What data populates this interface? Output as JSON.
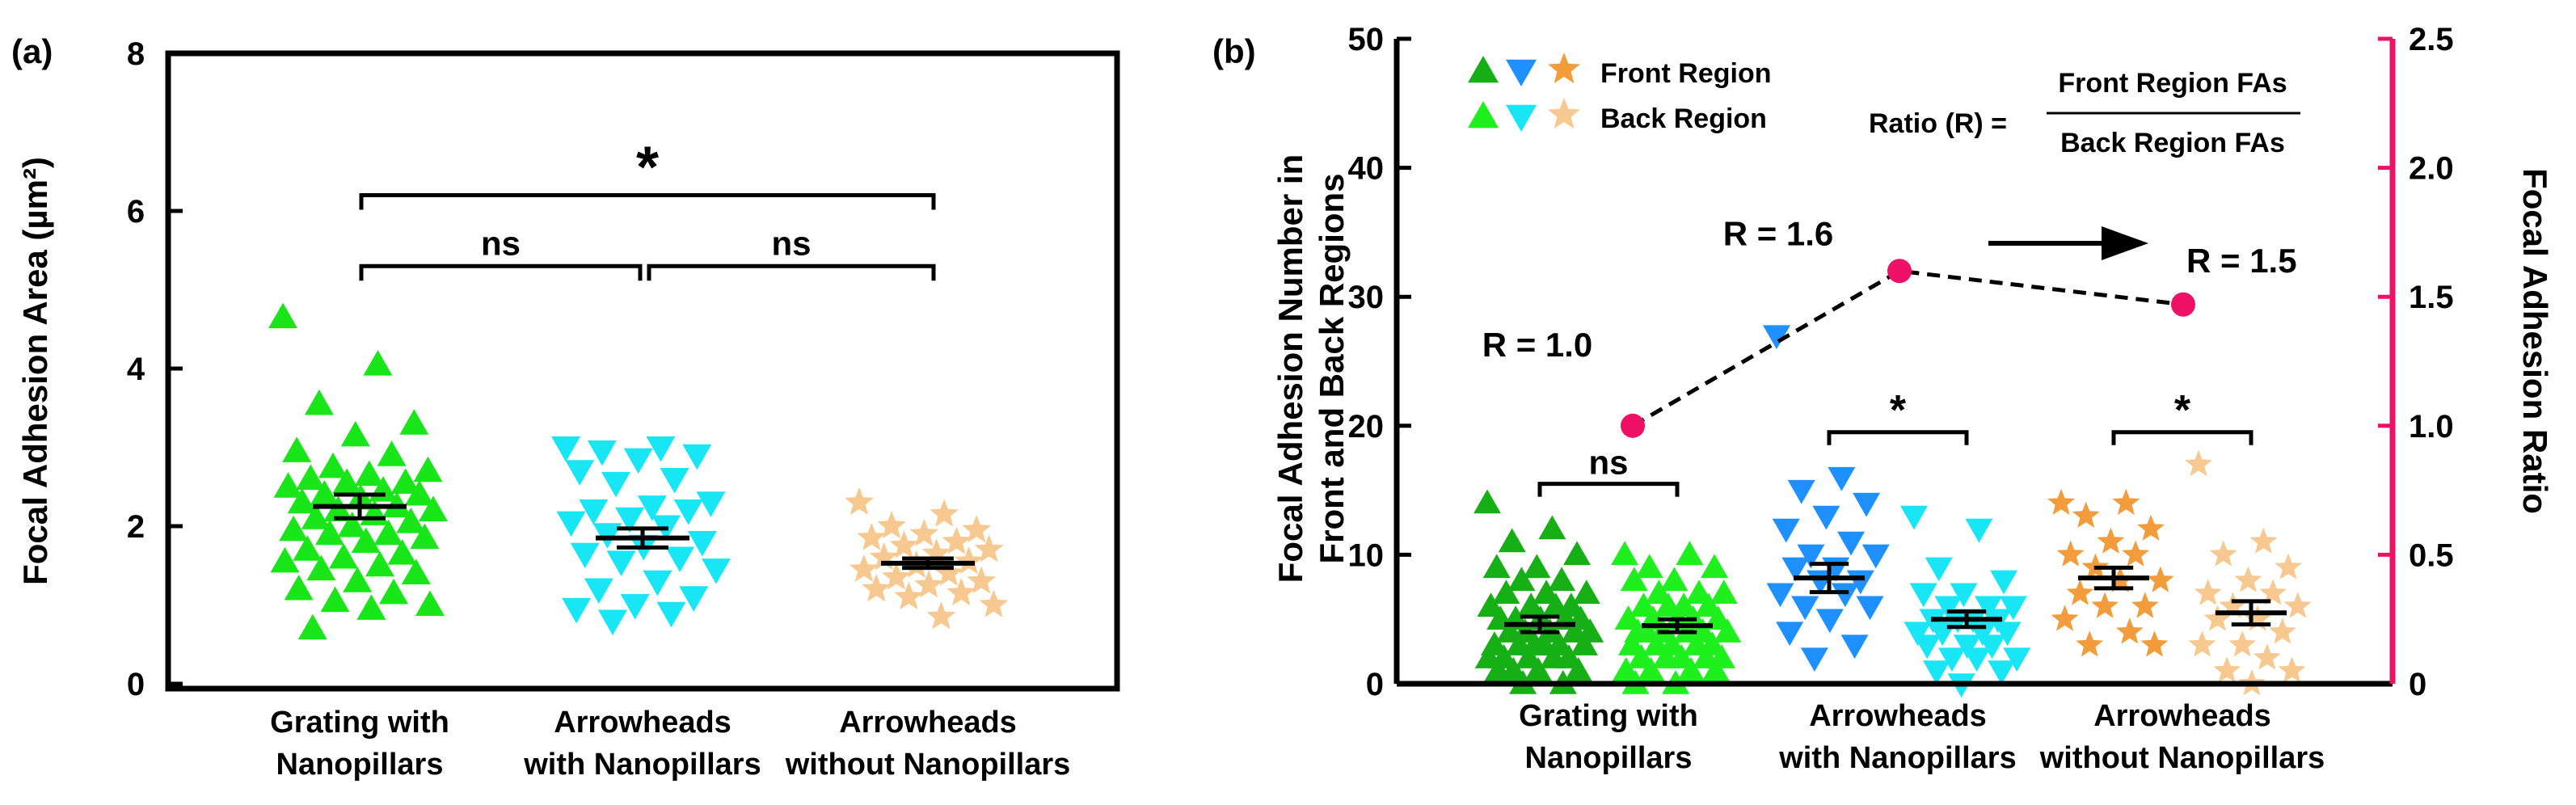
{
  "chart_data": [
    {
      "panel_label": "(a)",
      "type": "scatter",
      "ylabel": "Focal Adhesion Area (µm²)",
      "ylim": [
        0,
        8
      ],
      "yticks": [
        "0",
        "2",
        "4",
        "6",
        "8"
      ],
      "categories": [
        "Grating with Nanopillars",
        "Arrowheads with Nanopillars",
        "Arrowheads without Nanopillars"
      ],
      "category_lines": [
        [
          "Grating with",
          "Nanopillars"
        ],
        [
          "Arrowheads",
          "with Nanopillars"
        ],
        [
          "Arrowheads",
          "without Nanopillars"
        ]
      ],
      "series": [
        {
          "name": "Grating with Nanopillars",
          "marker": "triangle-up",
          "color": "#19e619",
          "mean": 2.25,
          "sem": 0.15,
          "values": [
            4.65,
            4.05,
            3.55,
            3.3,
            3.15,
            2.95,
            2.9,
            2.75,
            2.7,
            2.65,
            2.6,
            2.55,
            2.55,
            2.5,
            2.45,
            2.4,
            2.4,
            2.35,
            2.3,
            2.25,
            2.2,
            2.2,
            2.15,
            2.1,
            2.05,
            2.0,
            1.95,
            1.9,
            1.9,
            1.85,
            1.8,
            1.7,
            1.65,
            1.6,
            1.55,
            1.5,
            1.45,
            1.4,
            1.3,
            1.2,
            1.15,
            1.05,
            1.0,
            0.95,
            0.7
          ]
        },
        {
          "name": "Arrowheads with Nanopillars",
          "marker": "triangle-down",
          "color": "#19e6f5",
          "mean": 1.85,
          "sem": 0.12,
          "values": [
            3.0,
            3.0,
            2.95,
            2.9,
            2.85,
            2.7,
            2.6,
            2.55,
            2.3,
            2.25,
            2.2,
            2.2,
            2.1,
            2.05,
            2.0,
            1.9,
            1.8,
            1.75,
            1.65,
            1.6,
            1.55,
            1.45,
            1.3,
            1.2,
            1.1,
            1.0,
            0.95,
            0.9,
            0.8
          ]
        },
        {
          "name": "Arrowheads without Nanopillars",
          "marker": "star",
          "color": "#f7c990",
          "mean": 1.53,
          "sem": 0.06,
          "values": [
            2.3,
            2.15,
            2.0,
            1.95,
            1.9,
            1.85,
            1.8,
            1.75,
            1.7,
            1.65,
            1.6,
            1.55,
            1.5,
            1.45,
            1.4,
            1.35,
            1.3,
            1.25,
            1.2,
            1.15,
            1.1,
            1.0,
            0.85
          ]
        }
      ],
      "significance": [
        {
          "from": 0,
          "to": 1,
          "label": "ns"
        },
        {
          "from": 1,
          "to": 2,
          "label": "ns"
        },
        {
          "from": 0,
          "to": 2,
          "label": "*"
        }
      ]
    },
    {
      "panel_label": "(b)",
      "type": "scatter",
      "ylabel_lines": [
        "Focal Adhesion Number in",
        "Front and Back Regions"
      ],
      "ylim": [
        0,
        50
      ],
      "yticks": [
        "0",
        "10",
        "20",
        "30",
        "40",
        "50"
      ],
      "y2label": "Focal Adhesion Ratio",
      "y2lim": [
        0,
        2.5
      ],
      "y2ticks": [
        "0",
        "0.5",
        "1.0",
        "1.5",
        "2.0",
        "2.5"
      ],
      "y2color": "#ee1166",
      "categories": [
        "Grating with Nanopillars",
        "Arrowheads with Nanopillars",
        "Arrowheads without Nanopillars"
      ],
      "category_lines": [
        [
          "Grating with",
          "Nanopillars"
        ],
        [
          "Arrowheads",
          "with Nanopillars"
        ],
        [
          "Arrowheads",
          "without Nanopillars"
        ]
      ],
      "legend": {
        "front": "Front Region",
        "back": "Back Region",
        "ratio_prefix": "Ratio (R) =",
        "ratio_numerator": "Front Region FAs",
        "ratio_denominator": "Back Region FAs"
      },
      "series": [
        {
          "name": "Grating with Nanopillars - Front Region",
          "group": 0,
          "marker": "triangle-up",
          "color": "#16b016",
          "mean": 4.6,
          "sem": 0.6,
          "values": [
            14,
            12,
            11,
            10,
            9,
            9,
            8,
            8,
            7,
            7,
            7,
            6,
            6,
            6,
            6,
            5,
            5,
            5,
            5,
            5,
            4,
            4,
            4,
            4,
            4,
            3,
            3,
            3,
            3,
            3,
            3,
            2,
            2,
            2,
            2,
            2,
            1,
            1,
            1,
            1,
            0,
            0
          ]
        },
        {
          "name": "Grating with Nanopillars - Back Region",
          "group": 0,
          "marker": "triangle-up",
          "color": "#1ef01e",
          "mean": 4.5,
          "sem": 0.5,
          "values": [
            10,
            10,
            9,
            9,
            8,
            8,
            7,
            7,
            7,
            6,
            6,
            6,
            6,
            5,
            5,
            5,
            5,
            5,
            4,
            4,
            4,
            4,
            4,
            4,
            3,
            3,
            3,
            3,
            3,
            2,
            2,
            2,
            2,
            2,
            1,
            1,
            1,
            1,
            0,
            0
          ]
        },
        {
          "name": "Arrowheads with Nanopillars - Front Region",
          "group": 1,
          "marker": "triangle-down",
          "color": "#1e90ff",
          "mean": 8.2,
          "sem": 1.1,
          "values": [
            27,
            16,
            15,
            14,
            13,
            12,
            11,
            10,
            10,
            9,
            9,
            8,
            8,
            7,
            7,
            6,
            6,
            5,
            4,
            3,
            2
          ]
        },
        {
          "name": "Arrowheads with Nanopillars - Back Region",
          "group": 1,
          "marker": "triangle-down",
          "color": "#19e6f5",
          "mean": 5.0,
          "sem": 0.6,
          "values": [
            13,
            12,
            9,
            8,
            7,
            7,
            6,
            6,
            6,
            5,
            5,
            5,
            5,
            4,
            4,
            4,
            4,
            3,
            3,
            3,
            2,
            2,
            2,
            1,
            1,
            0
          ]
        },
        {
          "name": "Arrowheads without Nanopillars - Front Region",
          "group": 2,
          "marker": "star",
          "color": "#f39c3c",
          "mean": 8.2,
          "sem": 0.8,
          "values": [
            14,
            14,
            13,
            12,
            11,
            10,
            10,
            9,
            8,
            8,
            7,
            6,
            6,
            5,
            4,
            3,
            3
          ]
        },
        {
          "name": "Arrowheads without Nanopillars - Back Region",
          "group": 2,
          "marker": "star",
          "color": "#f7c990",
          "mean": 5.5,
          "sem": 0.9,
          "values": [
            17,
            11,
            10,
            9,
            8,
            7,
            7,
            6,
            6,
            5,
            5,
            4,
            3,
            3,
            2,
            1,
            1,
            0
          ]
        }
      ],
      "ratio": {
        "values": [
          1.0,
          1.6,
          1.47
        ],
        "labels": [
          "R = 1.0",
          "R = 1.6",
          "R = 1.5"
        ]
      },
      "significance": [
        {
          "group": 0,
          "label": "ns"
        },
        {
          "group": 1,
          "label": "*"
        },
        {
          "group": 2,
          "label": "*"
        }
      ]
    }
  ]
}
